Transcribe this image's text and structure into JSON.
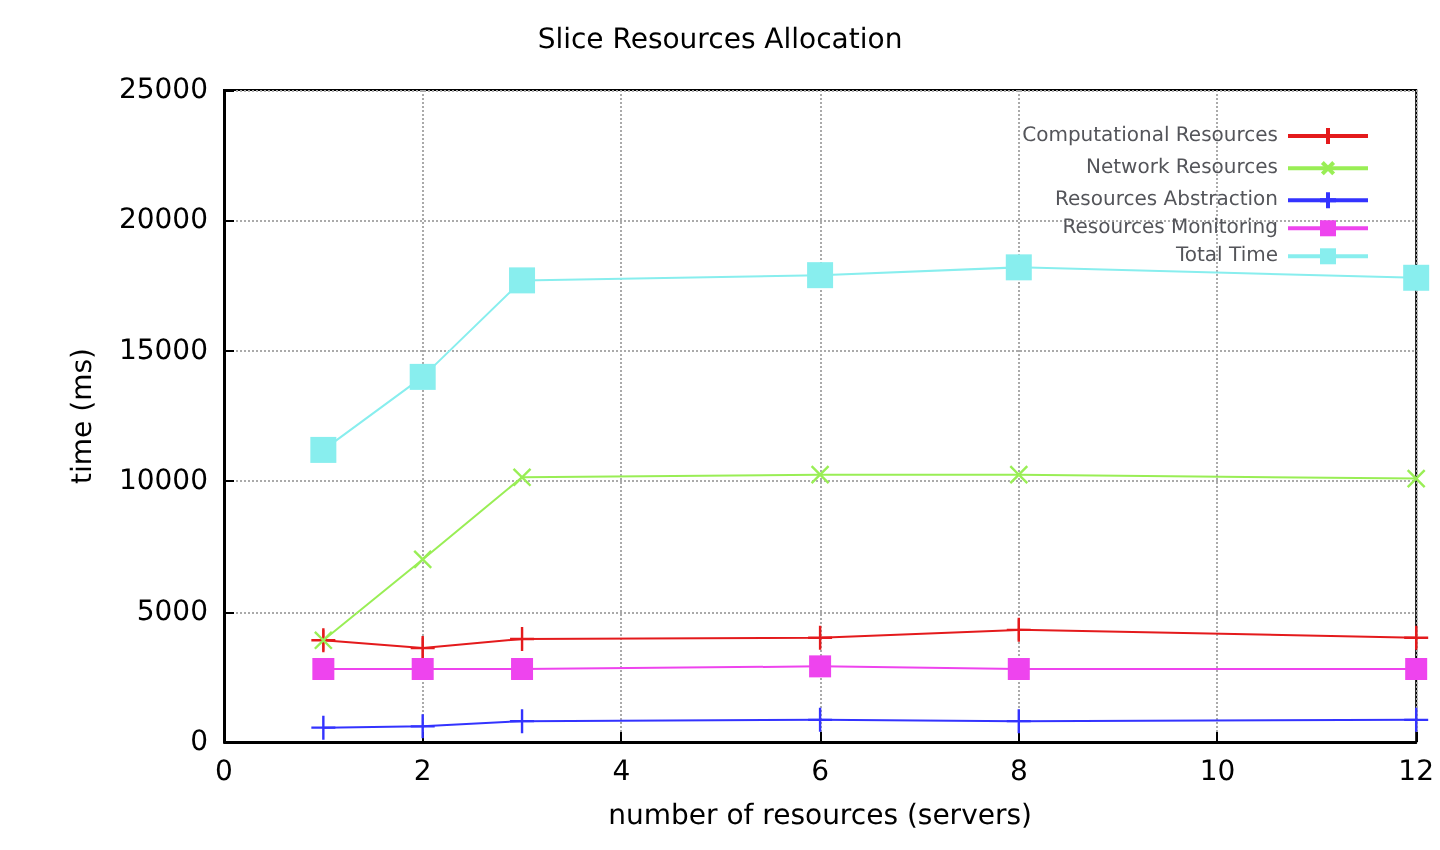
{
  "chart_data": {
    "type": "line",
    "title": "Slice Resources Allocation",
    "xlabel": "number of resources (servers)",
    "ylabel": "time (ms)",
    "x": [
      1,
      2,
      3,
      6,
      8,
      12
    ],
    "series": [
      {
        "name": "Computational Resources",
        "color": "#e41a1c",
        "marker": "cross",
        "values": [
          3900,
          3600,
          3950,
          4000,
          4300,
          4000
        ],
        "errors": [
          400,
          400,
          400,
          400,
          400,
          400
        ]
      },
      {
        "name": "Network Resources",
        "color": "#99ee55",
        "marker": "cross",
        "values": [
          3900,
          7000,
          10150,
          10250,
          10250,
          10100
        ]
      },
      {
        "name": "Resources Abstraction",
        "color": "#3333ff",
        "marker": "cross",
        "values": [
          550,
          600,
          800,
          850,
          800,
          850
        ]
      },
      {
        "name": "Resources Monitoring",
        "color": "#ee44ee",
        "marker": "square",
        "values": [
          2800,
          2800,
          2800,
          2900,
          2800,
          2800
        ]
      },
      {
        "name": "Total Time",
        "color": "#88eeee",
        "marker": "square",
        "values": [
          11200,
          14000,
          17700,
          17900,
          18200,
          17800
        ]
      }
    ],
    "xlim": [
      0,
      12
    ],
    "xticks": [
      0,
      2,
      4,
      6,
      8,
      10,
      12
    ],
    "ylim": [
      0,
      25000
    ],
    "yticks": [
      0,
      5000,
      10000,
      15000,
      20000,
      25000
    ],
    "grid": true,
    "legend": "top right"
  }
}
